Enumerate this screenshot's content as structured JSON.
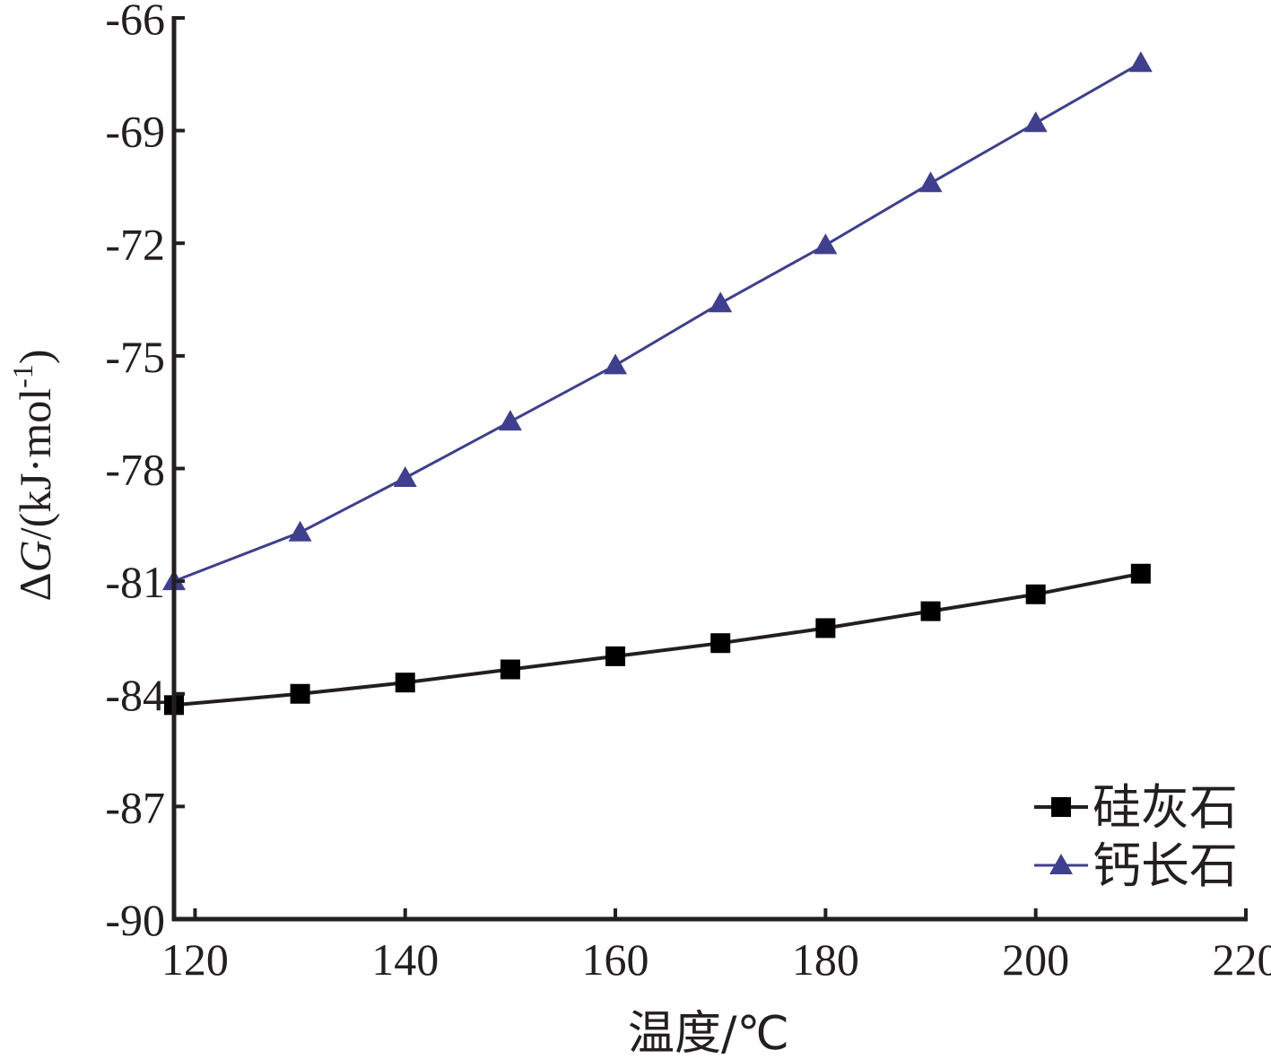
{
  "chart_data": {
    "type": "line",
    "xlabel": "温度/℃",
    "ylabel": {
      "delta": "Δ",
      "var": "G",
      "unit": "/(kJ·mol",
      "sup": "-1",
      "close": ")"
    },
    "xlim": [
      118,
      220
    ],
    "ylim": [
      -90,
      -66
    ],
    "xticks": [
      120,
      140,
      160,
      180,
      200,
      220
    ],
    "yticks": [
      -66,
      -69,
      -72,
      -75,
      -78,
      -81,
      -84,
      -87,
      -90
    ],
    "legend_position": "bottom-right",
    "series": [
      {
        "name": "硅灰石",
        "marker": "square",
        "color": "#231f20",
        "x": [
          118,
          130,
          140,
          150,
          160,
          170,
          180,
          190,
          200,
          210
        ],
        "y": [
          -84.3,
          -84.0,
          -83.7,
          -83.35,
          -83.0,
          -82.65,
          -82.25,
          -81.8,
          -81.35,
          -80.8
        ]
      },
      {
        "name": "钙长石",
        "marker": "triangle",
        "color": "#3f3f8f",
        "x": [
          118,
          130,
          140,
          150,
          160,
          170,
          180,
          190,
          200,
          210
        ],
        "y": [
          -81.0,
          -79.7,
          -78.25,
          -76.75,
          -75.25,
          -73.6,
          -72.05,
          -70.4,
          -68.8,
          -67.2
        ]
      }
    ]
  }
}
